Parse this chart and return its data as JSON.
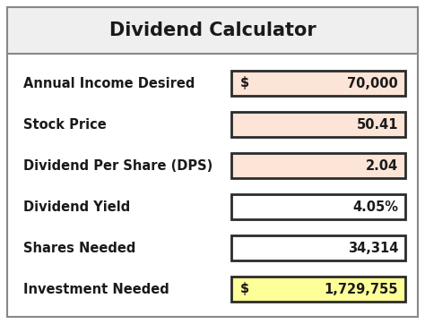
{
  "title": "Dividend Calculator",
  "title_bg": "#efefef",
  "rows": [
    {
      "label": "Annual Income Desired",
      "prefix": "$",
      "value": "70,000",
      "bg": "#fce4d6",
      "yellow": false
    },
    {
      "label": "Stock Price",
      "prefix": "",
      "value": "50.41",
      "bg": "#fce4d6",
      "yellow": false
    },
    {
      "label": "Dividend Per Share (DPS)",
      "prefix": "",
      "value": "2.04",
      "bg": "#fce4d6",
      "yellow": false
    },
    {
      "label": "Dividend Yield",
      "prefix": "",
      "value": "4.05%",
      "bg": "#ffffff",
      "yellow": false
    },
    {
      "label": "Shares Needed",
      "prefix": "",
      "value": "34,314",
      "bg": "#ffffff",
      "yellow": false
    },
    {
      "label": "Investment Needed",
      "prefix": "$",
      "value": "1,729,755",
      "bg": "#ffff99",
      "yellow": true
    }
  ],
  "border_color": "#2b2b2b",
  "outer_border_color": "#888888",
  "bg_color": "#ffffff",
  "label_color": "#1a1a1a",
  "value_color": "#1a1a1a",
  "title_color": "#1a1a1a",
  "fig_width": 4.74,
  "fig_height": 3.62,
  "dpi": 100
}
